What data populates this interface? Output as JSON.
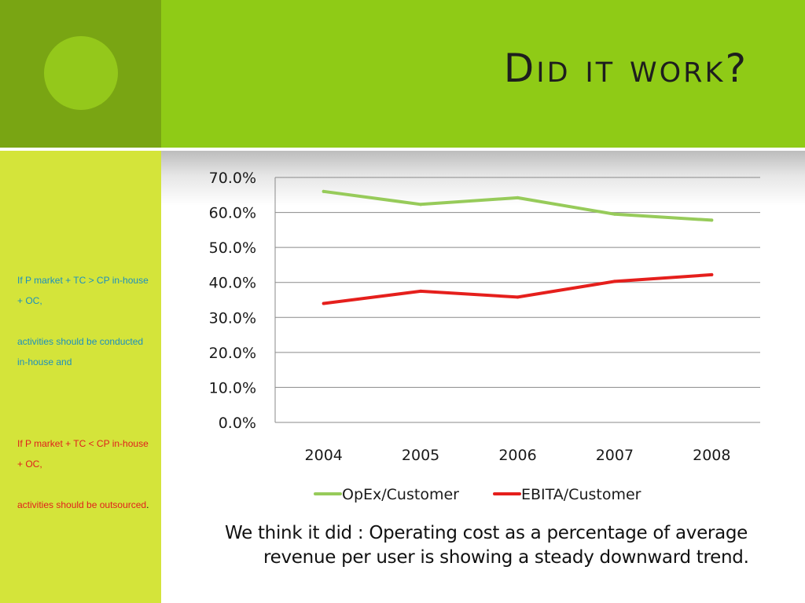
{
  "slide": {
    "title": "Did it work?",
    "body": "We think it did : Operating cost as a percentage of average revenue per user is showing a steady downward trend."
  },
  "sidebar": {
    "rule1_line1": "If P market + TC > CP in-house + OC,",
    "rule1_line2": "activities should be conducted in-house and",
    "rule2_line1": "If P market + TC < CP in-house + OC,",
    "rule2_line2": "activities should be outsourced",
    "rule2_period": "."
  },
  "colors": {
    "opex": "#97cb5a",
    "ebita": "#e51f1c",
    "rule_blue": "#1b8fbf",
    "rule_red": "#e0201c"
  },
  "chart_data": {
    "type": "line",
    "categories": [
      "2004",
      "2005",
      "2006",
      "2007",
      "2008"
    ],
    "series": [
      {
        "name": "OpEx/Customer",
        "values": [
          66.0,
          62.3,
          64.2,
          59.5,
          57.8
        ],
        "color": "#97cb5a"
      },
      {
        "name": "EBITA/Customer",
        "values": [
          34.0,
          37.5,
          35.8,
          40.3,
          42.2
        ],
        "color": "#e51f1c"
      }
    ],
    "yticks": [
      "0.0%",
      "10.0%",
      "20.0%",
      "30.0%",
      "40.0%",
      "50.0%",
      "60.0%",
      "70.0%"
    ],
    "ylim": [
      0,
      70
    ],
    "grid": true,
    "legend": "bottom",
    "title": "",
    "xlabel": "",
    "ylabel": ""
  }
}
